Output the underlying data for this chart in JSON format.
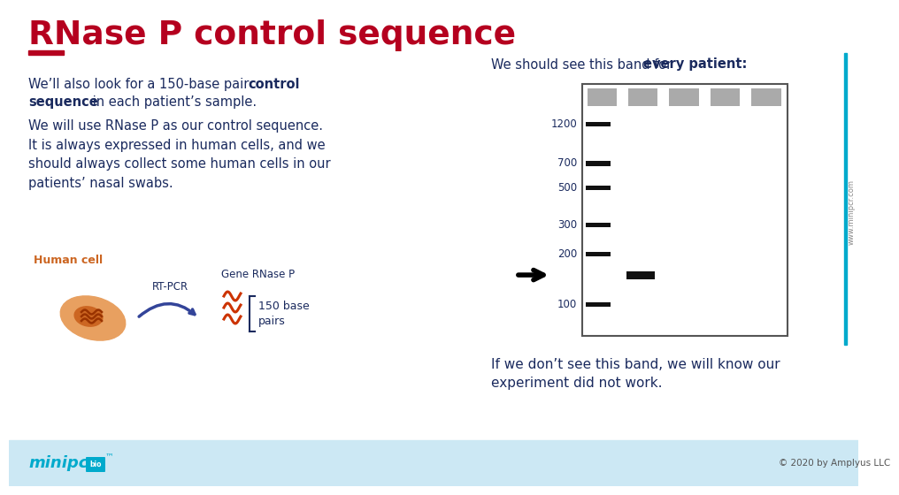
{
  "title": "RNase P control sequence",
  "title_color": "#b5001f",
  "bg_color": "#ffffff",
  "footer_bg": "#cce8f4",
  "text_color": "#1a2a5e",
  "gel_label_normal": "We should see this band for ",
  "gel_label_bold": "every patient:",
  "gel_ladder_bands": [
    1200,
    700,
    500,
    300,
    200,
    100
  ],
  "bottom_text_normal": "If we don’t see this band, we will know our\nexperiment did not work.",
  "copyright": "© 2020 by Amplyus LLC",
  "human_cell_label": "Human cell",
  "rt_pcr_label": "RT-PCR",
  "gene_label": "Gene RNase P",
  "bp_label": "150 base\npairs",
  "red_bar_color": "#b5001f",
  "ladder_band_color": "#111111",
  "sample_band_color": "#111111",
  "gray_band_color": "#aaaaaa",
  "www_text": "www.minipcr.com",
  "blue_line_color": "#00aacc",
  "cell_outer_color": "#e8a060",
  "cell_inner_color": "#cc6622",
  "rna_color": "#cc3300",
  "arrow_color": "#334499"
}
